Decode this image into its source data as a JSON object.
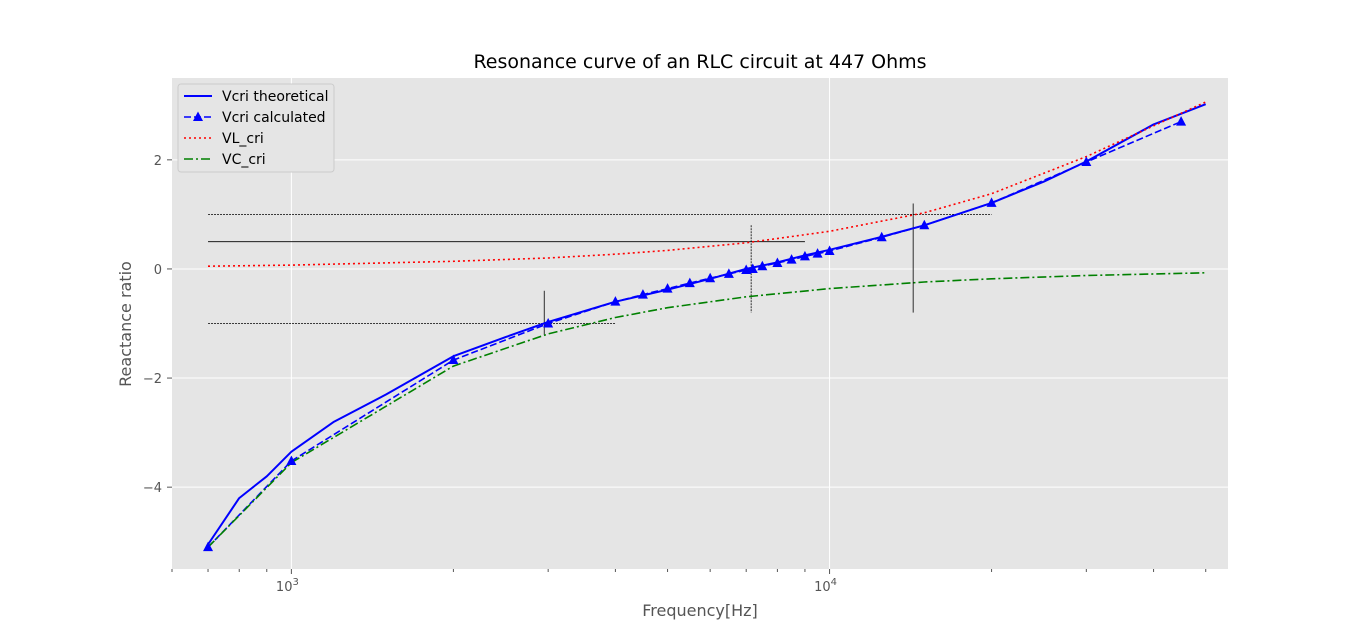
{
  "chart_data": {
    "type": "line",
    "title": "Resonance curve of an RLC circuit at 447 Ohms",
    "xlabel": "Frequency[Hz]",
    "ylabel": "Reactance ratio",
    "xscale": "log",
    "xlim": [
      600,
      55000
    ],
    "ylim": [
      -5.5,
      3.5
    ],
    "grid": true,
    "legend_position": "top-left",
    "x_major_ticks": [
      {
        "value": 1000,
        "base": "10",
        "exp": "3"
      },
      {
        "value": 10000,
        "base": "10",
        "exp": "4"
      }
    ],
    "y_ticks": [
      {
        "value": 2,
        "label": "2"
      },
      {
        "value": 0,
        "label": "0"
      },
      {
        "value": -2,
        "label": "−2"
      },
      {
        "value": -4,
        "label": "−4"
      }
    ],
    "series": [
      {
        "name": "Vcri theoretical",
        "color": "#0000ff",
        "style": "solid",
        "x": [
          700,
          800,
          900,
          1000,
          1200,
          1500,
          2000,
          2500,
          3000,
          4000,
          5000,
          6000,
          7000,
          8000,
          9000,
          10000,
          12500,
          15000,
          20000,
          25000,
          30000,
          40000,
          50000
        ],
        "y": [
          -5.05,
          -4.2,
          -3.8,
          -3.35,
          -2.8,
          -2.3,
          -1.6,
          -1.25,
          -0.97,
          -0.6,
          -0.38,
          -0.18,
          0.0,
          0.12,
          0.25,
          0.35,
          0.59,
          0.8,
          1.21,
          1.6,
          1.97,
          2.65,
          3.02
        ]
      },
      {
        "name": "Vcri calculated",
        "color": "#0000ff",
        "style": "dashed",
        "marker": "triangle",
        "x": [
          700,
          1000,
          2000,
          3000,
          4000,
          4500,
          5000,
          5500,
          6000,
          6500,
          7000,
          7200,
          7500,
          8000,
          8500,
          9000,
          9500,
          10000,
          12500,
          15000,
          20000,
          30000,
          45000
        ],
        "y": [
          -5.1,
          -3.52,
          -1.67,
          -1.0,
          -0.6,
          -0.47,
          -0.36,
          -0.26,
          -0.17,
          -0.09,
          -0.02,
          0.0,
          0.05,
          0.11,
          0.17,
          0.23,
          0.28,
          0.33,
          0.58,
          0.8,
          1.21,
          1.96,
          2.7
        ]
      },
      {
        "name": "VL_cri",
        "color": "#ff0000",
        "style": "dotted",
        "x": [
          700,
          1000,
          2000,
          3000,
          4000,
          5000,
          7000,
          10000,
          15000,
          20000,
          30000,
          50000
        ],
        "y": [
          0.05,
          0.07,
          0.14,
          0.2,
          0.27,
          0.34,
          0.48,
          0.69,
          1.03,
          1.38,
          2.06,
          3.06
        ]
      },
      {
        "name": "VC_cri",
        "color": "#008000",
        "style": "dashdot",
        "x": [
          700,
          1000,
          2000,
          3000,
          4000,
          5000,
          7000,
          10000,
          15000,
          20000,
          30000,
          50000
        ],
        "y": [
          -5.1,
          -3.55,
          -1.78,
          -1.19,
          -0.89,
          -0.71,
          -0.51,
          -0.36,
          -0.24,
          -0.18,
          -0.12,
          -0.07
        ]
      }
    ]
  }
}
